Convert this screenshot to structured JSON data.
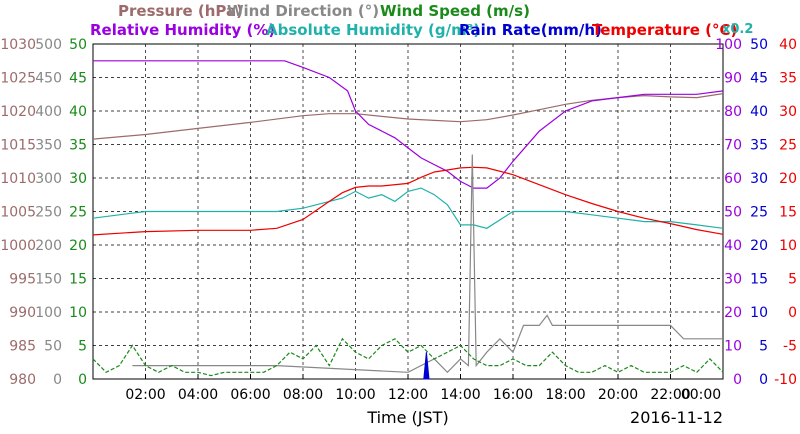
{
  "chart_data": {
    "type": "line",
    "xlabel": "Time (JST)",
    "date": "2016-11-12",
    "x_ticks": [
      "02:00",
      "04:00",
      "06:00",
      "08:00",
      "10:00",
      "12:00",
      "14:00",
      "16:00",
      "18:00",
      "20:00",
      "22:00",
      "00:00"
    ],
    "xlim_hours": [
      0,
      24
    ],
    "grid": true,
    "legend": {
      "row1": [
        {
          "label": "Pressure (hPa)",
          "color": "#9c6b6b"
        },
        {
          "label": "Wind Direction (°)",
          "color": "#888888"
        },
        {
          "label": "Wind Speed (m/s)",
          "color": "#1a8a1a"
        }
      ],
      "row2": [
        {
          "label": "Relative Humidity (%)",
          "color": "#9b00e0"
        },
        {
          "label": "Absolute Humidity (g/m³)",
          "color": "#20b2aa"
        },
        {
          "label": "Rain Rate(mm/h)",
          "color": "#0000d0"
        },
        {
          "label": "Temperature (°C)",
          "color": "#ee0000"
        }
      ],
      "rain_multiplier": "x0.2"
    },
    "axes": {
      "pressure": {
        "labels": [
          "980",
          "985",
          "990",
          "995",
          "1000",
          "1005",
          "1010",
          "1015",
          "1020",
          "1025",
          "1030"
        ],
        "range": [
          980,
          1030
        ],
        "color": "#9c6b6b"
      },
      "wind_dir": {
        "labels": [
          "0",
          "50",
          "100",
          "150",
          "200",
          "250",
          "300",
          "350",
          "400",
          "450",
          "500"
        ],
        "range": [
          0,
          500
        ],
        "color": "#888888"
      },
      "wind_speed": {
        "labels": [
          "0",
          "5",
          "10",
          "15",
          "20",
          "25",
          "30",
          "35",
          "40",
          "45",
          "50"
        ],
        "range": [
          0,
          50
        ],
        "color": "#1a8a1a"
      },
      "humidity": {
        "labels": [
          "0",
          "10",
          "20",
          "30",
          "40",
          "50",
          "60",
          "70",
          "80",
          "90",
          "100"
        ],
        "range": [
          0,
          100
        ],
        "color": "#9b00e0"
      },
      "rain": {
        "labels": [
          "0",
          "5",
          "10",
          "15",
          "20",
          "25",
          "30",
          "35",
          "40",
          "45",
          "50"
        ],
        "range": [
          0,
          50
        ],
        "color": "#0000d0"
      },
      "temperature": {
        "labels": [
          "-10",
          "-5",
          "0",
          "5",
          "10",
          "15",
          "20",
          "25",
          "30",
          "35",
          "40"
        ],
        "range": [
          -10,
          40
        ],
        "color": "#ee0000"
      }
    },
    "series": [
      {
        "name": "Pressure (hPa)",
        "axis": "pressure",
        "color": "#9c6b6b",
        "x": [
          0,
          2,
          4,
          6,
          8,
          9,
          10,
          11,
          12,
          13,
          14,
          15,
          16,
          17,
          18,
          19,
          20,
          21,
          22,
          23,
          24
        ],
        "y": [
          1015.8,
          1016.5,
          1017.4,
          1018.3,
          1019.3,
          1019.6,
          1019.6,
          1019.2,
          1018.8,
          1018.6,
          1018.4,
          1018.7,
          1019.4,
          1020.2,
          1021.0,
          1021.6,
          1022.0,
          1022.3,
          1022.1,
          1022.0,
          1022.6
        ]
      },
      {
        "name": "Relative Humidity (%)",
        "axis": "humidity",
        "color": "#9b00e0",
        "x": [
          0,
          6.5,
          7.3,
          8,
          9,
          9.7,
          10,
          10.5,
          11,
          11.5,
          12,
          12.5,
          13,
          13.5,
          14,
          14.5,
          15,
          15.5,
          16,
          17,
          18,
          19,
          20,
          21,
          22,
          23,
          24
        ],
        "y": [
          95,
          95,
          95,
          93,
          90,
          86,
          80,
          76,
          74,
          72,
          69,
          66,
          64,
          62,
          59,
          57,
          57,
          60,
          65,
          74,
          80,
          83,
          84,
          85,
          85,
          85,
          86
        ]
      },
      {
        "name": "Absolute Humidity (g/m³)",
        "axis": "humidity",
        "color": "#20b2aa",
        "x": [
          0,
          1,
          2,
          3,
          4,
          5,
          6,
          7,
          8,
          9,
          9.5,
          10,
          10.5,
          11,
          11.5,
          12,
          12.5,
          13,
          13.5,
          14,
          14.5,
          15,
          16,
          17,
          18,
          19,
          20,
          21,
          22,
          23,
          24
        ],
        "y": [
          48,
          49,
          50,
          50,
          50,
          50,
          50,
          50,
          51,
          53,
          54,
          56,
          54,
          55,
          53,
          56,
          57,
          55,
          52,
          46,
          46,
          45,
          50,
          50,
          50,
          49,
          48,
          47,
          47,
          46,
          45
        ]
      },
      {
        "name": "Temperature (°C)",
        "axis": "temperature",
        "color": "#ee0000",
        "x": [
          0,
          2,
          4,
          6,
          7,
          8,
          9,
          9.5,
          10,
          10.5,
          11,
          12,
          12.5,
          13,
          13.5,
          14,
          14.5,
          15,
          16,
          17,
          18,
          19,
          20,
          21,
          22,
          23,
          24
        ],
        "y": [
          11.5,
          12.0,
          12.2,
          12.2,
          12.5,
          13.8,
          16.5,
          17.8,
          18.6,
          18.8,
          18.8,
          19.2,
          20.1,
          20.9,
          21.2,
          21.5,
          21.6,
          21.5,
          20.5,
          19.0,
          17.5,
          16.2,
          15.0,
          14.0,
          13.2,
          12.3,
          11.6
        ]
      },
      {
        "name": "Wind Direction (°)",
        "axis": "wind_dir",
        "color": "#888888",
        "x": [
          1.5,
          1.6,
          6,
          7,
          12,
          13,
          13.5,
          14,
          14.3,
          14.45,
          14.6,
          15,
          15.5,
          16,
          16.4,
          17,
          17.3,
          17.5,
          18,
          20,
          22,
          22.5,
          24
        ],
        "y": [
          20,
          20,
          20,
          20,
          10,
          30,
          10,
          30,
          20,
          335,
          20,
          40,
          60,
          40,
          80,
          80,
          95,
          80,
          80,
          80,
          80,
          60,
          60
        ]
      },
      {
        "name": "Wind Speed (m/s)",
        "axis": "wind_speed",
        "color": "#1a8a1a",
        "x": [
          0,
          0.5,
          1,
          1.5,
          2,
          2.5,
          3,
          3.5,
          4,
          4.5,
          5,
          5.5,
          6,
          6.5,
          7,
          7.5,
          8,
          8.5,
          9,
          9.5,
          10,
          10.5,
          11,
          11.5,
          12,
          12.5,
          13,
          13.5,
          14,
          14.5,
          15,
          15.5,
          16,
          16.5,
          17,
          17.5,
          18,
          18.5,
          19,
          19.5,
          20,
          20.5,
          21,
          21.5,
          22,
          22.5,
          23,
          23.5,
          24
        ],
        "y": [
          3,
          1,
          2,
          5,
          2,
          1,
          2,
          1,
          1,
          0.5,
          1,
          1,
          1,
          1,
          2,
          4,
          3,
          5,
          2,
          6,
          4,
          3,
          5,
          6,
          4,
          5,
          3,
          4,
          5,
          3,
          2,
          2,
          3,
          2,
          2,
          4,
          2,
          1,
          1,
          2,
          1,
          2,
          1,
          1,
          1,
          2,
          1,
          3,
          1
        ]
      },
      {
        "name": "Rain Rate(mm/h)",
        "axis": "rain",
        "color": "#0000d0",
        "x": [
          12.6,
          12.7,
          12.8
        ],
        "y": [
          0,
          4,
          0
        ]
      }
    ]
  }
}
